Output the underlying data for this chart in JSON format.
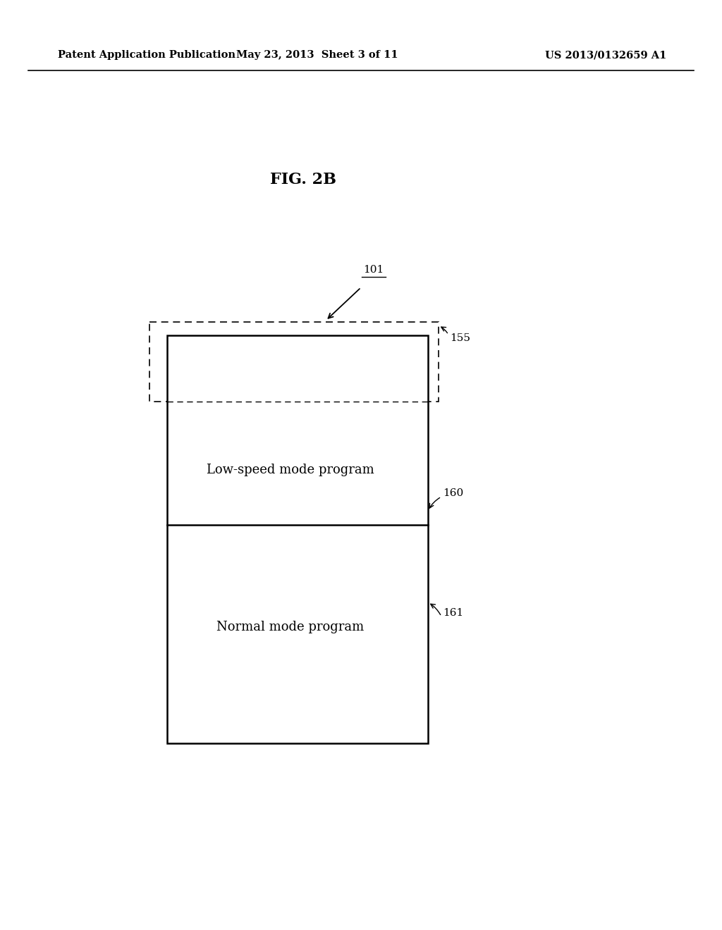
{
  "bg_color": "#ffffff",
  "header_left": "Patent Application Publication",
  "header_mid": "May 23, 2013  Sheet 3 of 11",
  "header_right": "US 2013/0132659 A1",
  "fig_title": "FIG. 2B",
  "label_101": "101",
  "label_155": "155",
  "label_160": "160",
  "label_161": "161",
  "text_160": "Low-speed mode program",
  "text_161": "Normal mode program",
  "font_size_header": 10.5,
  "font_size_title": 16,
  "font_size_labels": 11,
  "font_size_box_text": 13
}
